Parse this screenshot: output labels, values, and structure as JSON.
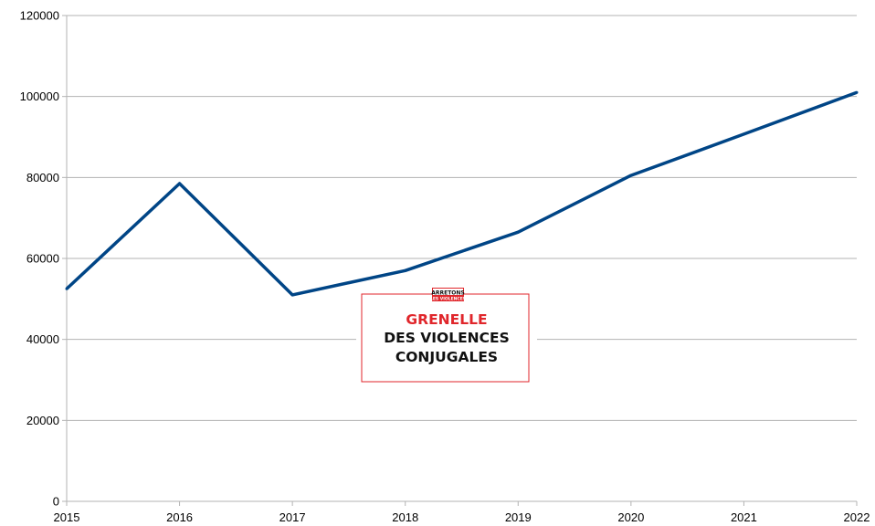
{
  "chart_data": {
    "type": "line",
    "title": "",
    "xlabel": "",
    "ylabel": "",
    "categories": [
      "2015",
      "2016",
      "2017",
      "2018",
      "2019",
      "2020",
      "2021",
      "2022"
    ],
    "series": [
      {
        "values": [
          52500,
          78500,
          51000,
          57000,
          66500,
          80500,
          90700,
          101000
        ],
        "color": "#004586"
      }
    ],
    "ylim": [
      0,
      120000
    ],
    "yticks": [
      "0",
      "20000",
      "40000",
      "60000",
      "80000",
      "100000",
      "120000"
    ],
    "grid": true,
    "legend": "none"
  },
  "overlay_logo": {
    "badge_line1": "ARRETONS",
    "badge_line2": "LES VIOLENCES",
    "line1": "GRENELLE",
    "line2": "DES VIOLENCES",
    "line3": "CONJUGALES",
    "accent_color": "#e0262b",
    "text_color": "#111111"
  }
}
